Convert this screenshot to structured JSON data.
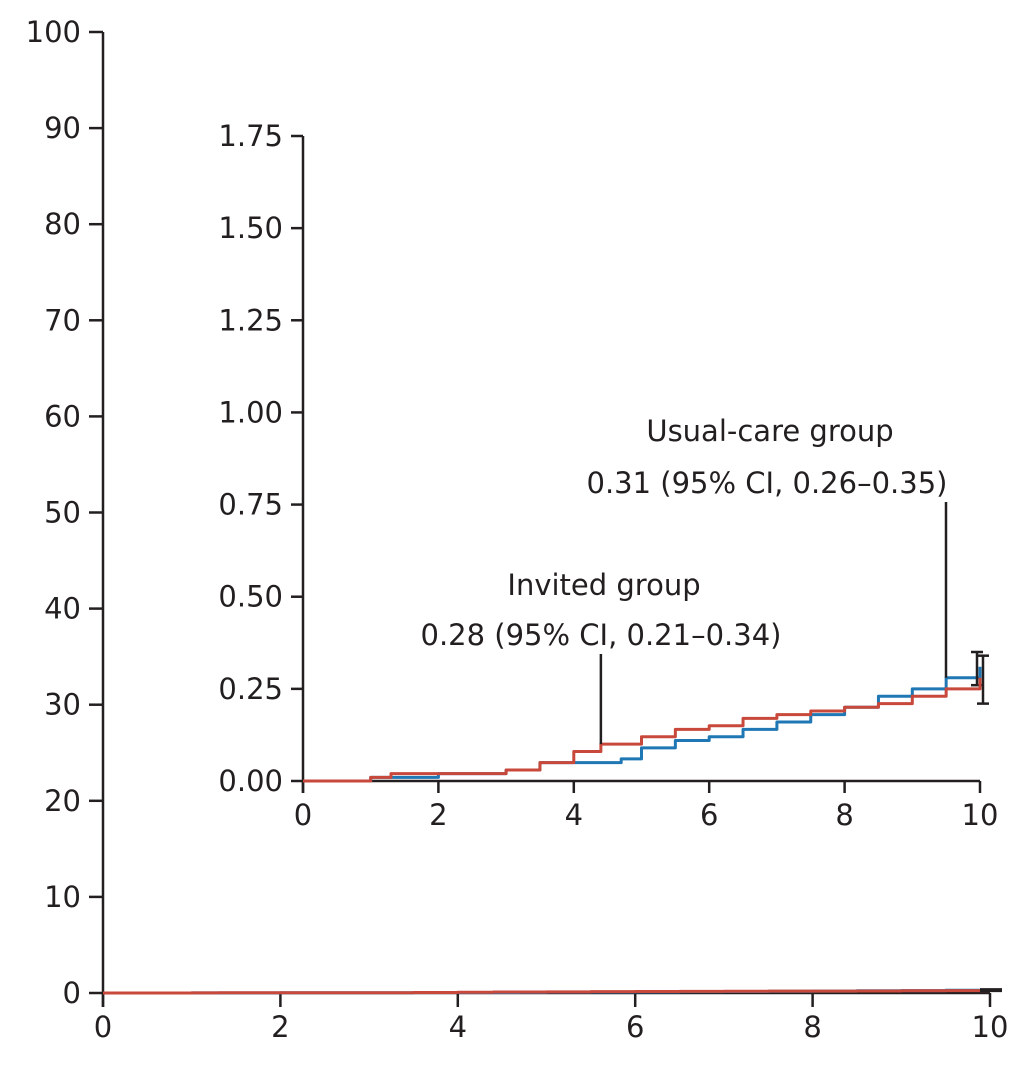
{
  "chart_data": [
    {
      "type": "line",
      "name": "main",
      "xlim": [
        0,
        10
      ],
      "ylim": [
        0,
        100
      ],
      "x_ticks": [
        0,
        2,
        4,
        6,
        8,
        10
      ],
      "y_ticks": [
        0,
        10,
        20,
        30,
        40,
        50,
        60,
        70,
        80,
        90,
        100
      ],
      "x_tick_labels": [
        "0",
        "2",
        "4",
        "6",
        "8",
        "10"
      ],
      "y_tick_labels": [
        "0",
        "10",
        "20",
        "30",
        "40",
        "50",
        "60",
        "70",
        "80",
        "90",
        "100"
      ],
      "series": [
        {
          "key": "usual",
          "color": "#1f77b4",
          "x": [
            0,
            1,
            2,
            3,
            3.5,
            4,
            4.7,
            5,
            5.5,
            6,
            6.5,
            7,
            7.5,
            8,
            8.5,
            9,
            9.5,
            10
          ],
          "y": [
            0,
            0.01,
            0.02,
            0.03,
            0.05,
            0.05,
            0.06,
            0.09,
            0.11,
            0.12,
            0.14,
            0.16,
            0.18,
            0.2,
            0.23,
            0.25,
            0.28,
            0.31
          ]
        },
        {
          "key": "invited",
          "color": "#c8493b",
          "x": [
            0,
            1,
            1.3,
            2,
            3,
            3.5,
            4,
            4.4,
            5,
            5.5,
            6,
            6.5,
            7,
            7.5,
            8,
            8.5,
            9,
            9.5,
            10
          ],
          "y": [
            0,
            0.01,
            0.02,
            0.02,
            0.03,
            0.05,
            0.08,
            0.1,
            0.12,
            0.14,
            0.15,
            0.17,
            0.18,
            0.19,
            0.2,
            0.21,
            0.23,
            0.25,
            0.28
          ]
        }
      ]
    },
    {
      "type": "line",
      "name": "inset",
      "xlim": [
        0,
        10
      ],
      "ylim": [
        0,
        1.75
      ],
      "x_ticks": [
        0,
        2,
        4,
        6,
        8,
        10
      ],
      "y_ticks": [
        0,
        0.25,
        0.5,
        0.75,
        1.0,
        1.25,
        1.5,
        1.75
      ],
      "x_tick_labels": [
        "0",
        "2",
        "4",
        "6",
        "8",
        "10"
      ],
      "y_tick_labels": [
        "0.00",
        "0.25",
        "0.50",
        "0.75",
        "1.00",
        "1.25",
        "1.50",
        "1.75"
      ],
      "series": [
        {
          "key": "usual",
          "color": "#1f77b4",
          "x": [
            0,
            1,
            2,
            3,
            3.5,
            4,
            4.7,
            5,
            5.5,
            6,
            6.5,
            7,
            7.5,
            8,
            8.5,
            9,
            9.5,
            10
          ],
          "y": [
            0,
            0.01,
            0.02,
            0.03,
            0.05,
            0.05,
            0.06,
            0.09,
            0.11,
            0.12,
            0.14,
            0.16,
            0.18,
            0.2,
            0.23,
            0.25,
            0.28,
            0.31
          ],
          "ci": [
            0.26,
            0.35
          ]
        },
        {
          "key": "invited",
          "color": "#c8493b",
          "x": [
            0,
            1,
            1.3,
            2,
            3,
            3.5,
            4,
            4.4,
            5,
            5.5,
            6,
            6.5,
            7,
            7.5,
            8,
            8.5,
            9,
            9.5,
            10
          ],
          "y": [
            0,
            0.01,
            0.02,
            0.02,
            0.03,
            0.05,
            0.08,
            0.1,
            0.12,
            0.14,
            0.15,
            0.17,
            0.18,
            0.19,
            0.2,
            0.21,
            0.23,
            0.25,
            0.28
          ],
          "ci": [
            0.21,
            0.34
          ]
        }
      ],
      "annotations": [
        {
          "key": "usual",
          "line1": "Usual-care group",
          "line2": "0.31 (95% CI, 0.26–0.35)",
          "point": [
            9.5,
            0.28
          ]
        },
        {
          "key": "invited",
          "line1": "Invited group",
          "line2": "0.28 (95% CI, 0.21–0.34)",
          "point": [
            4.4,
            0.1
          ]
        }
      ]
    }
  ]
}
